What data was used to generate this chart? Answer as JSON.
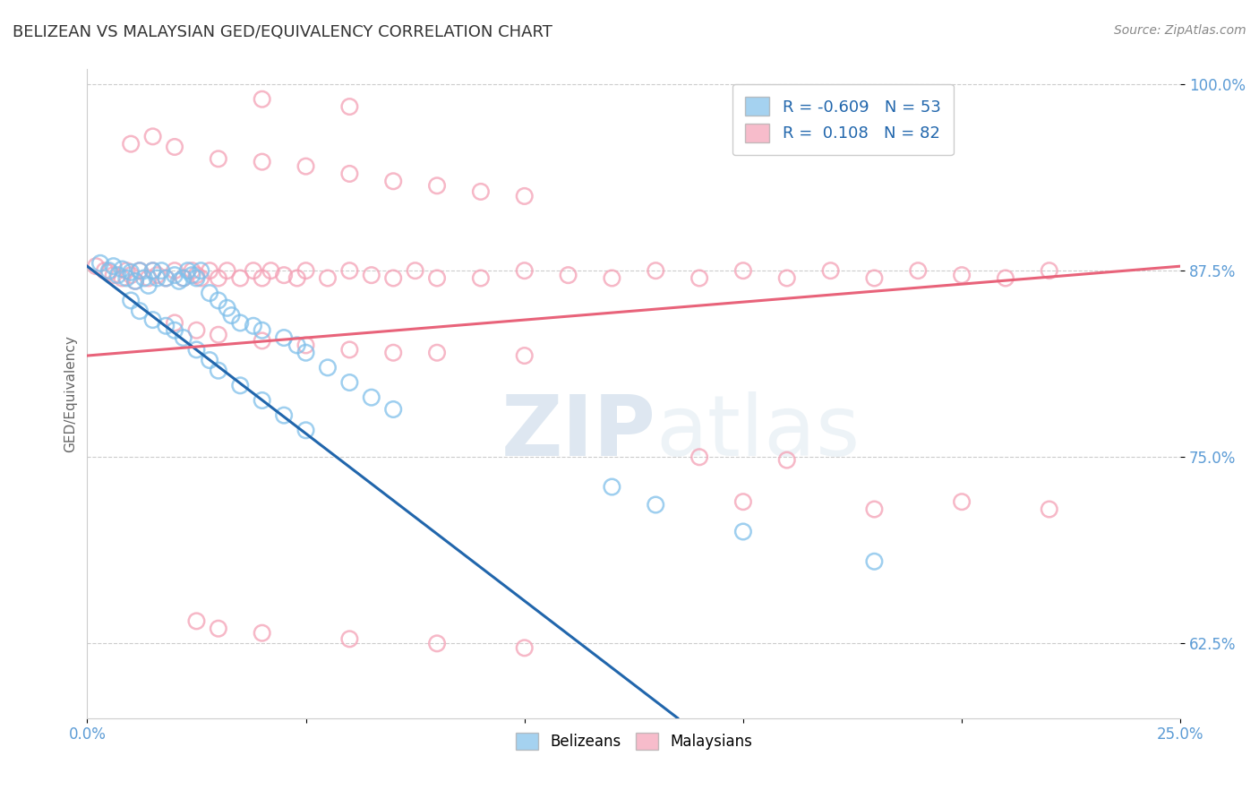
{
  "title": "BELIZEAN VS MALAYSIAN GED/EQUIVALENCY CORRELATION CHART",
  "source": "Source: ZipAtlas.com",
  "ylabel": "GED/Equivalency",
  "xlim": [
    0.0,
    0.25
  ],
  "ylim": [
    0.575,
    1.01
  ],
  "ytick_positions": [
    0.625,
    0.75,
    0.875,
    1.0
  ],
  "yticklabels": [
    "62.5%",
    "75.0%",
    "87.5%",
    "100.0%"
  ],
  "blue_color": "#7fbfea",
  "pink_color": "#f4a0b5",
  "blue_line_color": "#2166ac",
  "pink_line_color": "#e8637a",
  "legend_blue_R": "-0.609",
  "legend_blue_N": "53",
  "legend_pink_R": "0.108",
  "legend_pink_N": "82",
  "watermark_zip": "ZIP",
  "watermark_atlas": "atlas",
  "grid_color": "#cccccc",
  "background_color": "#ffffff",
  "title_fontsize": 13,
  "tick_label_color": "#5b9bd5",
  "blue_line_x": [
    0.0,
    0.135
  ],
  "blue_line_y": [
    0.878,
    0.575
  ],
  "pink_line_x": [
    0.0,
    0.25
  ],
  "pink_line_y": [
    0.818,
    0.878
  ],
  "blue_scatter_x": [
    0.003,
    0.005,
    0.006,
    0.007,
    0.008,
    0.009,
    0.01,
    0.011,
    0.012,
    0.013,
    0.014,
    0.015,
    0.016,
    0.017,
    0.018,
    0.02,
    0.021,
    0.022,
    0.023,
    0.024,
    0.025,
    0.026,
    0.028,
    0.03,
    0.032,
    0.033,
    0.035,
    0.038,
    0.04,
    0.045,
    0.048,
    0.05,
    0.055,
    0.06,
    0.065,
    0.07,
    0.01,
    0.012,
    0.015,
    0.018,
    0.02,
    0.022,
    0.025,
    0.028,
    0.03,
    0.035,
    0.04,
    0.045,
    0.05,
    0.12,
    0.13,
    0.15,
    0.18
  ],
  "blue_scatter_y": [
    0.88,
    0.875,
    0.878,
    0.872,
    0.876,
    0.87,
    0.874,
    0.868,
    0.875,
    0.87,
    0.865,
    0.875,
    0.87,
    0.875,
    0.87,
    0.872,
    0.868,
    0.87,
    0.875,
    0.872,
    0.87,
    0.875,
    0.86,
    0.855,
    0.85,
    0.845,
    0.84,
    0.838,
    0.835,
    0.83,
    0.825,
    0.82,
    0.81,
    0.8,
    0.79,
    0.782,
    0.855,
    0.848,
    0.842,
    0.838,
    0.835,
    0.83,
    0.822,
    0.815,
    0.808,
    0.798,
    0.788,
    0.778,
    0.768,
    0.73,
    0.718,
    0.7,
    0.68
  ],
  "pink_scatter_x": [
    0.002,
    0.004,
    0.005,
    0.006,
    0.008,
    0.009,
    0.01,
    0.011,
    0.012,
    0.014,
    0.015,
    0.016,
    0.018,
    0.02,
    0.022,
    0.024,
    0.025,
    0.026,
    0.028,
    0.03,
    0.032,
    0.035,
    0.038,
    0.04,
    0.042,
    0.045,
    0.048,
    0.05,
    0.055,
    0.06,
    0.065,
    0.07,
    0.075,
    0.08,
    0.09,
    0.1,
    0.11,
    0.12,
    0.13,
    0.14,
    0.15,
    0.16,
    0.17,
    0.18,
    0.19,
    0.2,
    0.21,
    0.22,
    0.02,
    0.025,
    0.03,
    0.04,
    0.05,
    0.06,
    0.07,
    0.01,
    0.015,
    0.02,
    0.03,
    0.04,
    0.05,
    0.06,
    0.07,
    0.08,
    0.09,
    0.1,
    0.15,
    0.18,
    0.08,
    0.1,
    0.025,
    0.03,
    0.04,
    0.06,
    0.08,
    0.1,
    0.2,
    0.22,
    0.04,
    0.06,
    0.14,
    0.16
  ],
  "pink_scatter_y": [
    0.878,
    0.875,
    0.874,
    0.872,
    0.87,
    0.875,
    0.872,
    0.868,
    0.875,
    0.87,
    0.875,
    0.872,
    0.87,
    0.875,
    0.87,
    0.875,
    0.872,
    0.87,
    0.875,
    0.87,
    0.875,
    0.87,
    0.875,
    0.87,
    0.875,
    0.872,
    0.87,
    0.875,
    0.87,
    0.875,
    0.872,
    0.87,
    0.875,
    0.87,
    0.87,
    0.875,
    0.872,
    0.87,
    0.875,
    0.87,
    0.875,
    0.87,
    0.875,
    0.87,
    0.875,
    0.872,
    0.87,
    0.875,
    0.84,
    0.835,
    0.832,
    0.828,
    0.825,
    0.822,
    0.82,
    0.96,
    0.965,
    0.958,
    0.95,
    0.948,
    0.945,
    0.94,
    0.935,
    0.932,
    0.928,
    0.925,
    0.72,
    0.715,
    0.82,
    0.818,
    0.64,
    0.635,
    0.632,
    0.628,
    0.625,
    0.622,
    0.72,
    0.715,
    0.99,
    0.985,
    0.75,
    0.748
  ]
}
